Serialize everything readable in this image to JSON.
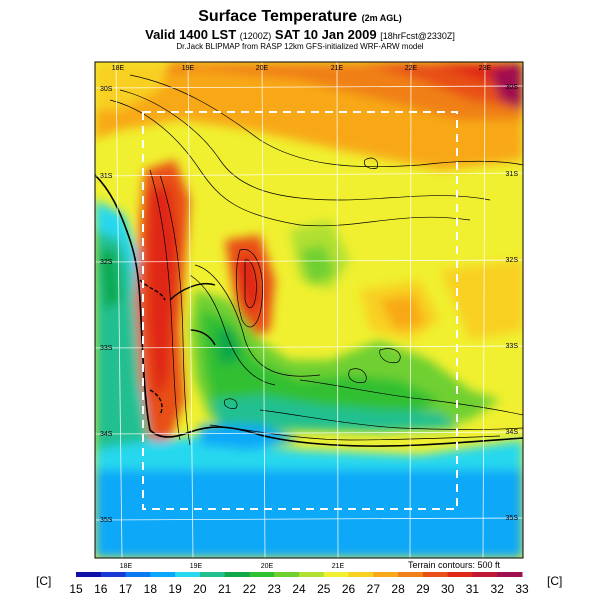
{
  "header": {
    "title": "Surface Temperature",
    "title_suffix": "(2m AGL)",
    "valid_prefix": "Valid 1400 LST",
    "valid_code": "(1200Z)",
    "valid_date": "SAT 10 Jan 2009",
    "forecast_info": "[18hrFcst@2330Z]",
    "credit": "Dr.Jack BLIPMAP from RASP 12km GFS-initialized WRF-ARW model"
  },
  "map": {
    "lon_labels_top": [
      "18E",
      "19E",
      "20E",
      "21E",
      "22E",
      "23E"
    ],
    "lon_labels_bottom": [
      "18E",
      "19E",
      "20E",
      "21E"
    ],
    "lat_labels_left": [
      "30S",
      "31S",
      "32S",
      "33S",
      "34S",
      "35S"
    ],
    "lat_labels_right": [
      "30S",
      "31S",
      "32S",
      "33S",
      "34S",
      "35S"
    ],
    "terrain_note": "Terrain contours: 500 ft",
    "boundary_style": "dashed-white"
  },
  "colorbar": {
    "unit_left": "[C]",
    "unit_right": "[C]",
    "labels": [
      "15",
      "16",
      "17",
      "18",
      "19",
      "20",
      "21",
      "22",
      "23",
      "24",
      "25",
      "26",
      "27",
      "28",
      "29",
      "30",
      "31",
      "32",
      "33"
    ],
    "colors": [
      "#1010a8",
      "#1a3ad8",
      "#0a7af0",
      "#0aa8f8",
      "#28d8ee",
      "#20c090",
      "#10a848",
      "#30c030",
      "#70d030",
      "#b0e030",
      "#f0f030",
      "#f8d020",
      "#f8a818",
      "#f08018",
      "#e85018",
      "#e02818",
      "#c01838",
      "#a01050"
    ]
  }
}
